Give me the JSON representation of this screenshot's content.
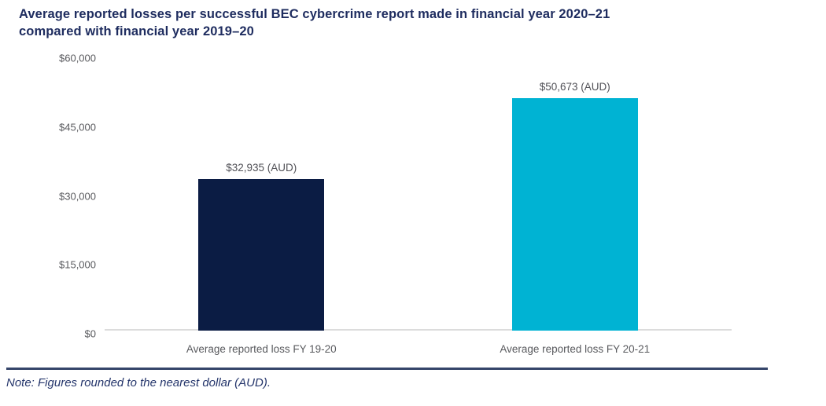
{
  "title": {
    "line1": "Average reported losses per successful BEC cybercrime report made in financial year 2020–21",
    "line2": "compared with financial year 2019–20"
  },
  "chart_data": {
    "type": "bar",
    "title": "Average reported losses per successful BEC cybercrime report made in financial year 2020–21 compared with financial year 2019–20",
    "categories": [
      "Average reported loss FY 19-20",
      "Average reported loss FY 20-21"
    ],
    "values": [
      32935,
      50673
    ],
    "value_labels": [
      "$32,935 (AUD)",
      "$50,673 (AUD)"
    ],
    "bar_colors": [
      "#0b1c44",
      "#00b3d3"
    ],
    "yticks": [
      {
        "label": "$0",
        "value": 0
      },
      {
        "label": "$15,000",
        "value": 15000
      },
      {
        "label": "$30,000",
        "value": 30000
      },
      {
        "label": "$45,000",
        "value": 45000
      },
      {
        "label": "$60,000",
        "value": 60000
      }
    ],
    "ylim": [
      0,
      60000
    ],
    "xlabel": "",
    "ylabel": "",
    "grid": false,
    "legend": false
  },
  "note": "Note: Figures rounded to the nearest dollar (AUD).",
  "colors": {
    "background": "#ffffff",
    "title_text": "#1e2c5f",
    "note_text": "#24356b",
    "axis_label": "#595a5e",
    "value_label": "#515157",
    "axis_line": "#dcdcdc",
    "divider": "#35456a"
  }
}
